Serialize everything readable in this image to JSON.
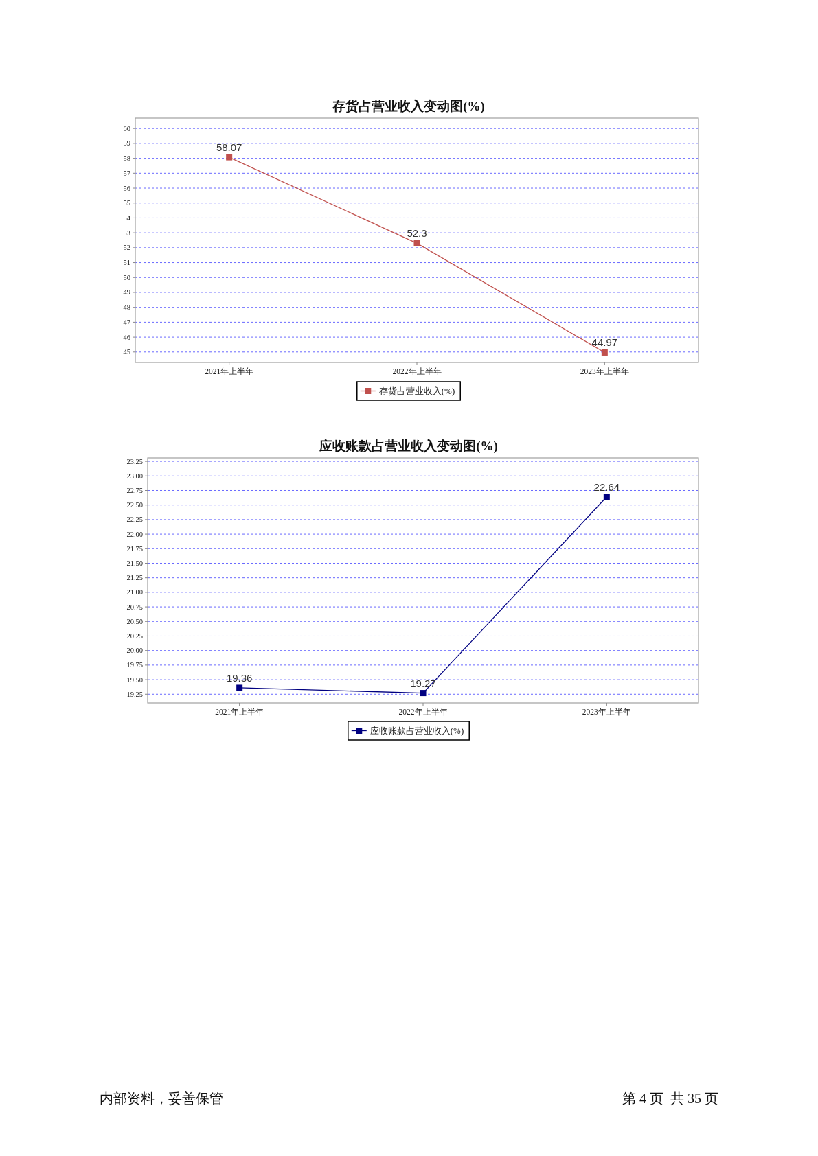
{
  "chart_data": [
    {
      "type": "line",
      "title": "存货占营业收入变动图(%)",
      "categories": [
        "2021年上半年",
        "2022年上半年",
        "2023年上半年"
      ],
      "series": [
        {
          "name": "存货占营业收入(%)",
          "color": "#c0504d",
          "values": [
            58.07,
            52.3,
            44.97
          ]
        }
      ],
      "ylim": [
        44.3,
        60.7
      ],
      "yticks": [
        45,
        46,
        47,
        48,
        49,
        50,
        51,
        52,
        53,
        54,
        55,
        56,
        57,
        58,
        59,
        60
      ],
      "grid": "y",
      "legend": "bottom",
      "marker": "square",
      "line_style": "solid",
      "data_labels": true
    },
    {
      "type": "line",
      "title": "应收账款占营业收入变动图(%)",
      "categories": [
        "2021年上半年",
        "2022年上半年",
        "2023年上半年"
      ],
      "series": [
        {
          "name": "应收账款占营业收入(%)",
          "color": "#000080",
          "values": [
            19.36,
            19.27,
            22.64
          ]
        }
      ],
      "ylim": [
        19.1,
        23.31
      ],
      "yticks": [
        19.25,
        {
          "value": 19.5,
          "label": "19.50"
        },
        19.75,
        {
          "value": 20,
          "label": "20.00"
        },
        20.25,
        {
          "value": 20.5,
          "label": "20.50"
        },
        20.75,
        {
          "value": 21,
          "label": "21.00"
        },
        21.25,
        {
          "value": 21.5,
          "label": "21.50"
        },
        21.75,
        {
          "value": 22,
          "label": "22.00"
        },
        22.25,
        {
          "value": 22.5,
          "label": "22.50"
        },
        22.75,
        {
          "value": 23,
          "label": "23.00"
        },
        23.25
      ],
      "grid": "y",
      "legend": "bottom",
      "marker": "square",
      "line_style": "solid",
      "data_labels": true,
      "annotations": [
        "内部资料，妥善保管",
        "第 4 页  共 35 页"
      ]
    }
  ]
}
